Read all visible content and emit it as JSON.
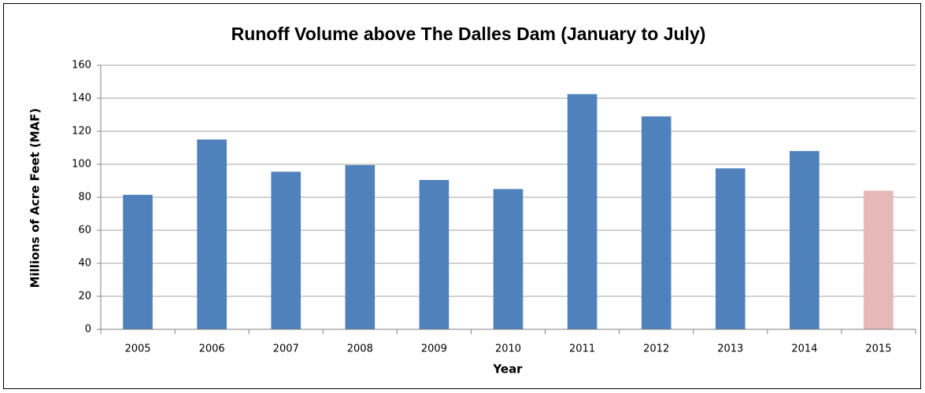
{
  "chart_data": {
    "type": "bar",
    "title": "Runoff Volume above The Dalles Dam (January to July)",
    "x_label": "Year",
    "y_label": "Millions of Acre Feet (MAF)",
    "categories": [
      "2005",
      "2006",
      "2007",
      "2008",
      "2009",
      "2010",
      "2011",
      "2012",
      "2013",
      "2014",
      "2015"
    ],
    "values": [
      81.5,
      115,
      95.5,
      99.5,
      90.5,
      85,
      142.5,
      129,
      97.5,
      108,
      84
    ],
    "colors": [
      "#4f81bd",
      "#4f81bd",
      "#4f81bd",
      "#4f81bd",
      "#4f81bd",
      "#4f81bd",
      "#4f81bd",
      "#4f81bd",
      "#4f81bd",
      "#4f81bd",
      "#e6b9b8"
    ],
    "ylim": [
      0,
      160
    ],
    "yticks": [
      0,
      20,
      40,
      60,
      80,
      100,
      120,
      140,
      160
    ],
    "grid": true
  }
}
